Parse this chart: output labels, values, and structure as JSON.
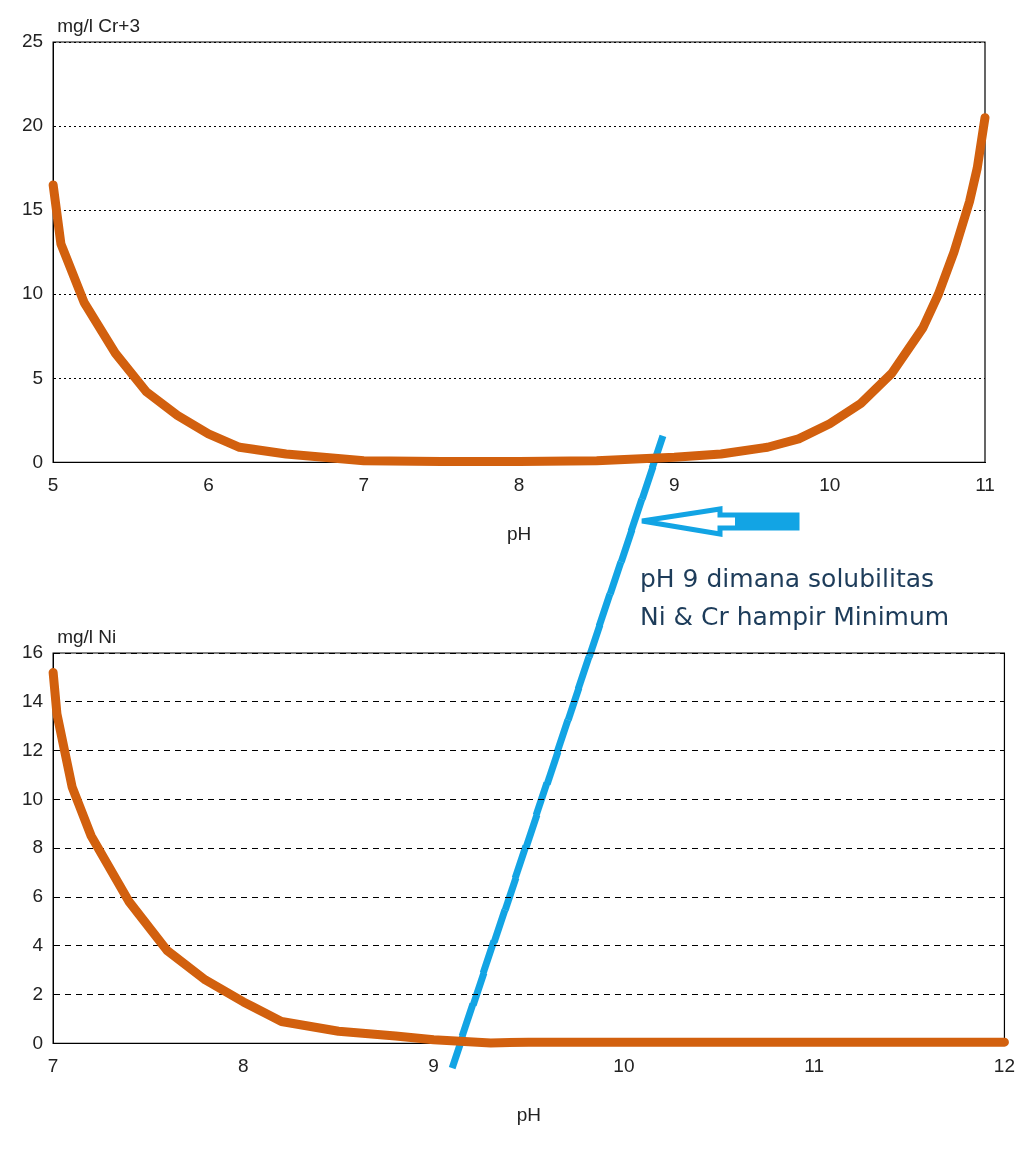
{
  "chart_data": [
    {
      "type": "line",
      "xlabel": "pH",
      "ylabel": "mg/l Cr+3",
      "color": "#d2600e",
      "grid": "y",
      "xlim": [
        5,
        11
      ],
      "ylim": [
        0,
        25
      ],
      "xticks": [
        5,
        6,
        7,
        8,
        9,
        10,
        11
      ],
      "yticks": [
        0,
        5,
        10,
        15,
        20,
        25
      ],
      "x": [
        5,
        5.05,
        5.2,
        5.4,
        5.6,
        5.8,
        6,
        6.2,
        6.5,
        7,
        7.5,
        8,
        8.5,
        9,
        9.3,
        9.6,
        9.8,
        10,
        10.2,
        10.4,
        10.6,
        10.7,
        10.8,
        10.9,
        10.95,
        11
      ],
      "values": [
        16.5,
        13,
        9.5,
        6.5,
        4.2,
        2.8,
        1.7,
        0.9,
        0.5,
        0.1,
        0.05,
        0.05,
        0.1,
        0.3,
        0.5,
        0.9,
        1.4,
        2.3,
        3.5,
        5.3,
        8,
        10,
        12.5,
        15.5,
        17.5,
        20.5
      ],
      "annotations": [
        "pH 9 dimana solubilitas Ni & Cr hampir Minimum"
      ]
    },
    {
      "type": "line",
      "xlabel": "pH",
      "ylabel": "mg/l Ni",
      "color": "#d2600e",
      "grid": "y",
      "xlim": [
        7,
        12
      ],
      "ylim": [
        0,
        16
      ],
      "xticks": [
        7,
        8,
        9,
        10,
        11,
        12
      ],
      "yticks": [
        0,
        2,
        4,
        6,
        8,
        10,
        12,
        14,
        16
      ],
      "x": [
        7,
        7.02,
        7.1,
        7.2,
        7.4,
        7.6,
        7.8,
        8,
        8.2,
        8.5,
        8.8,
        9,
        9.3,
        9.5,
        10,
        11,
        12
      ],
      "values": [
        15.2,
        13.5,
        10.5,
        8.5,
        5.8,
        3.8,
        2.6,
        1.7,
        0.9,
        0.5,
        0.3,
        0.15,
        0.02,
        0.05,
        0.05,
        0.05,
        0.05
      ]
    }
  ]
}
